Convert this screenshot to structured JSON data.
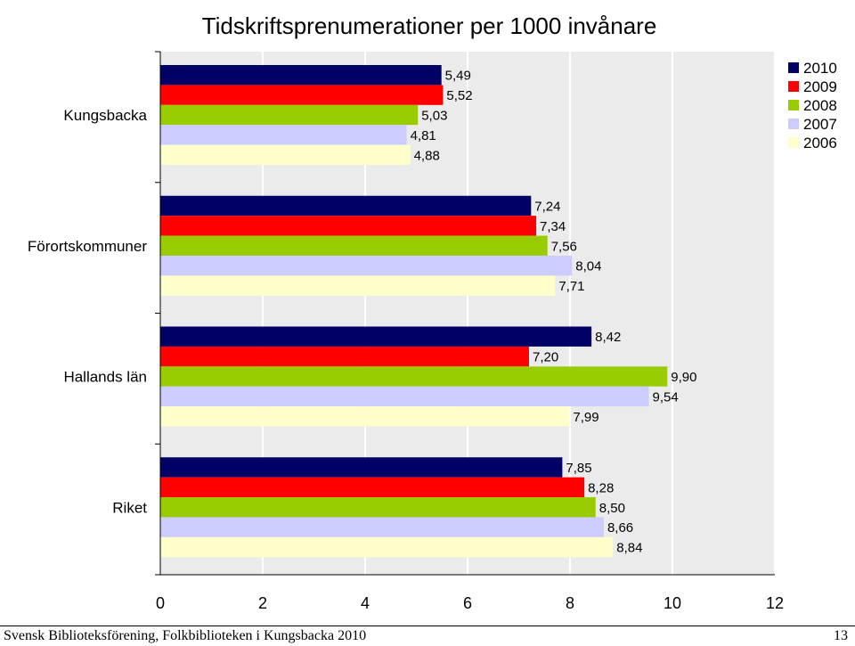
{
  "chart_data": {
    "type": "bar",
    "orientation": "horizontal",
    "title": "Tidskriftsprenumerationer per 1000 invånare",
    "categories": [
      "Kungsbacka",
      "Förortskommuner",
      "Hallands län",
      "Riket"
    ],
    "series": [
      {
        "name": "2010",
        "color": "#000066",
        "values": [
          5.49,
          7.24,
          8.42,
          7.85
        ],
        "labels": [
          "5,49",
          "7,24",
          "8,42",
          "7,85"
        ]
      },
      {
        "name": "2009",
        "color": "#ff0000",
        "values": [
          5.52,
          7.34,
          7.2,
          8.28
        ],
        "labels": [
          "5,52",
          "7,34",
          "7,20",
          "8,28"
        ]
      },
      {
        "name": "2008",
        "color": "#99cc00",
        "values": [
          5.03,
          7.56,
          9.9,
          8.5
        ],
        "labels": [
          "5,03",
          "7,56",
          "9,90",
          "8,50"
        ]
      },
      {
        "name": "2007",
        "color": "#ccccff",
        "values": [
          4.81,
          8.04,
          9.54,
          8.66
        ],
        "labels": [
          "4,81",
          "8,04",
          "9,54",
          "8,66"
        ]
      },
      {
        "name": "2006",
        "color": "#ffffcc",
        "values": [
          4.88,
          7.71,
          7.99,
          8.84
        ],
        "labels": [
          "4,88",
          "7,71",
          "7,99",
          "8,84"
        ]
      }
    ],
    "xlim": [
      0,
      12
    ],
    "xticks": [
      "0",
      "2",
      "4",
      "6",
      "8",
      "10",
      "12"
    ],
    "grid": true,
    "legend_position": "top-right",
    "plot_background": "#ebebeb",
    "gridline_color": "#ffffff"
  },
  "footer": {
    "left": "Svensk Biblioteksförening, Folkbiblioteken i Kungsbacka 2010",
    "page_number": "13"
  }
}
